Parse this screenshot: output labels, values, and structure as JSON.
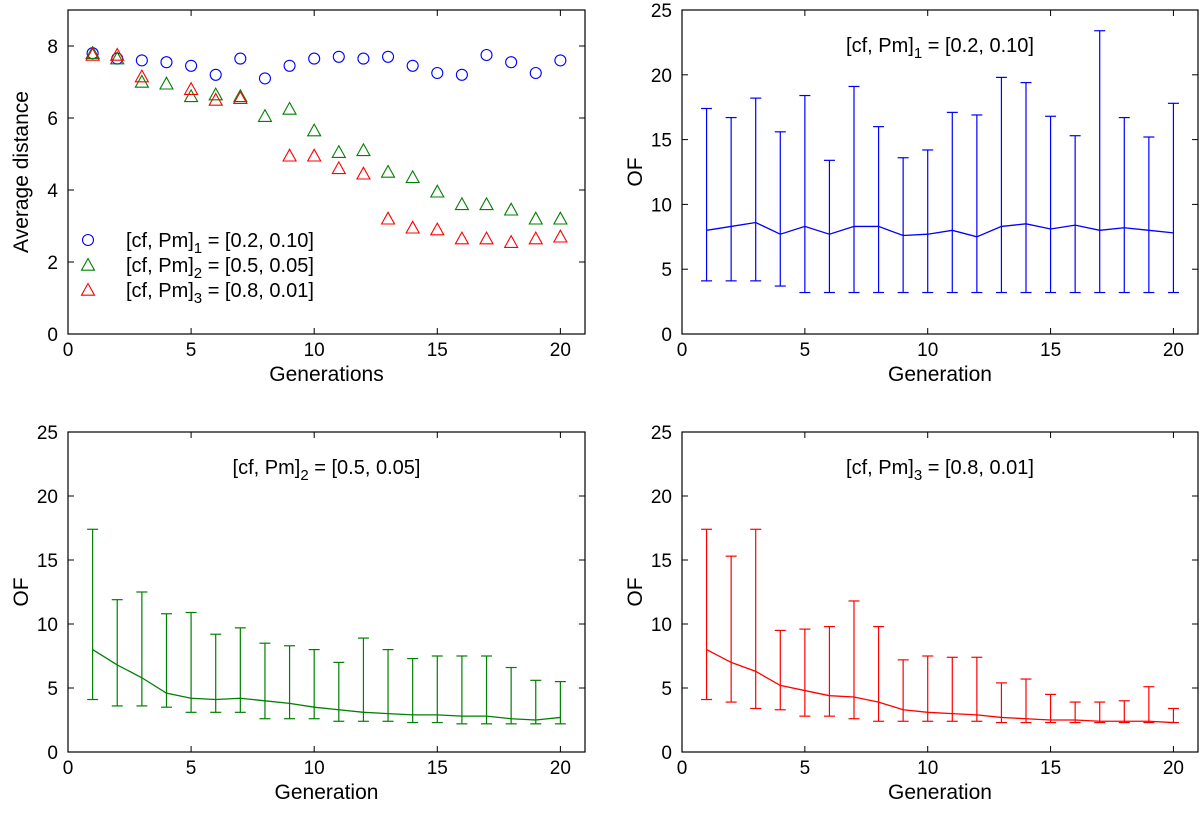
{
  "chart_data": [
    {
      "type": "scatter",
      "xlabel": "Generations",
      "ylabel": "Average distance",
      "xlim": [
        0,
        21
      ],
      "ylim": [
        0,
        9
      ],
      "xticks": [
        0,
        5,
        10,
        15,
        20
      ],
      "yticks": [
        0,
        2,
        4,
        6,
        8
      ],
      "legend_position": "lower-left",
      "series": [
        {
          "name": "[cf, Pm]1 = [0.2, 0.10]",
          "legend_main": "[cf, Pm]",
          "legend_sub": "1",
          "legend_rest": " = [0.2, 0.10]",
          "marker": "circle",
          "color": "#0000ff",
          "x": [
            1,
            2,
            3,
            4,
            5,
            6,
            7,
            8,
            9,
            10,
            11,
            12,
            13,
            14,
            15,
            16,
            17,
            18,
            19,
            20
          ],
          "y": [
            7.8,
            7.65,
            7.6,
            7.55,
            7.45,
            7.2,
            7.65,
            7.1,
            7.45,
            7.65,
            7.7,
            7.65,
            7.7,
            7.45,
            7.25,
            7.2,
            7.75,
            7.55,
            7.25,
            7.6
          ]
        },
        {
          "name": "[cf, Pm]2 = [0.5, 0.05]",
          "legend_main": "[cf, Pm]",
          "legend_sub": "2",
          "legend_rest": " = [0.5, 0.05]",
          "marker": "triangle",
          "color": "#008000",
          "x": [
            1,
            2,
            3,
            4,
            5,
            6,
            7,
            8,
            9,
            10,
            11,
            12,
            13,
            14,
            15,
            16,
            17,
            18,
            19,
            20
          ],
          "y": [
            7.8,
            7.65,
            7.0,
            6.95,
            6.6,
            6.65,
            6.6,
            6.05,
            6.25,
            5.65,
            5.05,
            5.1,
            4.5,
            4.35,
            3.95,
            3.6,
            3.6,
            3.45,
            3.2,
            3.2
          ]
        },
        {
          "name": "[cf, Pm]3 = [0.8, 0.01]",
          "legend_main": "[cf, Pm]",
          "legend_sub": "3",
          "legend_rest": " = [0.8, 0.01]",
          "marker": "triangle",
          "color": "#ff0000",
          "x": [
            1,
            2,
            3,
            4,
            5,
            6,
            7,
            8,
            9,
            10,
            11,
            12,
            13,
            14,
            15,
            16,
            17,
            18,
            19,
            20
          ],
          "y": [
            7.75,
            7.75,
            7.15,
            null,
            6.8,
            6.5,
            6.55,
            null,
            4.95,
            4.95,
            4.6,
            4.45,
            3.2,
            2.95,
            2.9,
            2.65,
            2.65,
            2.55,
            2.65,
            2.7
          ]
        }
      ]
    },
    {
      "type": "line",
      "xlabel": "Generation",
      "ylabel": "OF",
      "xlim": [
        0,
        21
      ],
      "ylim": [
        0,
        25
      ],
      "xticks": [
        0,
        5,
        10,
        15,
        20
      ],
      "yticks": [
        0,
        5,
        10,
        15,
        20,
        25
      ],
      "annotation_main": "[cf, Pm]",
      "annotation_sub": "1",
      "annotation_rest": " = [0.2, 0.10]",
      "color": "#0000ff",
      "x": [
        1,
        2,
        3,
        4,
        5,
        6,
        7,
        8,
        9,
        10,
        11,
        12,
        13,
        14,
        15,
        16,
        17,
        18,
        19,
        20
      ],
      "y": [
        8.0,
        8.3,
        8.6,
        7.7,
        8.3,
        7.7,
        8.3,
        8.3,
        7.6,
        7.7,
        8.0,
        7.5,
        8.3,
        8.5,
        8.1,
        8.4,
        8.0,
        8.2,
        8.0,
        7.8
      ],
      "lower": [
        4.1,
        4.1,
        4.1,
        3.7,
        3.2,
        3.2,
        3.2,
        3.2,
        3.2,
        3.2,
        3.2,
        3.2,
        3.2,
        3.2,
        3.2,
        3.2,
        3.2,
        3.2,
        3.2,
        3.2
      ],
      "upper": [
        17.4,
        16.7,
        18.2,
        15.6,
        18.4,
        13.4,
        19.1,
        16.0,
        13.6,
        14.2,
        17.1,
        16.9,
        19.8,
        19.4,
        16.8,
        15.3,
        23.4,
        16.7,
        15.2,
        17.8
      ]
    },
    {
      "type": "line",
      "xlabel": "Generation",
      "ylabel": "OF",
      "xlim": [
        0,
        21
      ],
      "ylim": [
        0,
        25
      ],
      "xticks": [
        0,
        5,
        10,
        15,
        20
      ],
      "yticks": [
        0,
        5,
        10,
        15,
        20,
        25
      ],
      "annotation_main": "[cf, Pm]",
      "annotation_sub": "2",
      "annotation_rest": " = [0.5, 0.05]",
      "color": "#008000",
      "x": [
        1,
        2,
        3,
        4,
        5,
        6,
        7,
        8,
        9,
        10,
        11,
        12,
        13,
        14,
        15,
        16,
        17,
        18,
        19,
        20
      ],
      "y": [
        8.0,
        6.8,
        5.8,
        4.6,
        4.2,
        4.1,
        4.2,
        4.0,
        3.8,
        3.5,
        3.3,
        3.1,
        3.0,
        2.9,
        2.9,
        2.8,
        2.8,
        2.6,
        2.5,
        2.7
      ],
      "lower": [
        4.1,
        3.6,
        3.6,
        3.5,
        3.1,
        3.1,
        3.1,
        2.6,
        2.6,
        2.6,
        2.4,
        2.4,
        2.4,
        2.3,
        2.3,
        2.2,
        2.2,
        2.2,
        2.2,
        2.2
      ],
      "upper": [
        17.4,
        11.9,
        12.5,
        10.8,
        10.9,
        9.2,
        9.7,
        8.5,
        8.3,
        8.0,
        7.0,
        8.9,
        8.0,
        7.3,
        7.5,
        7.5,
        7.5,
        6.6,
        5.6,
        5.5
      ]
    },
    {
      "type": "line",
      "xlabel": "Generation",
      "ylabel": "OF",
      "xlim": [
        0,
        21
      ],
      "ylim": [
        0,
        25
      ],
      "xticks": [
        0,
        5,
        10,
        15,
        20
      ],
      "yticks": [
        0,
        5,
        10,
        15,
        20,
        25
      ],
      "annotation_main": "[cf, Pm]",
      "annotation_sub": "3",
      "annotation_rest": " = [0.8, 0.01]",
      "color": "#ff0000",
      "x": [
        1,
        2,
        3,
        4,
        5,
        6,
        7,
        8,
        9,
        10,
        11,
        12,
        13,
        14,
        15,
        16,
        17,
        18,
        19,
        20
      ],
      "y": [
        8.0,
        7.0,
        6.3,
        5.2,
        4.8,
        4.4,
        4.3,
        3.9,
        3.3,
        3.1,
        3.0,
        2.9,
        2.7,
        2.6,
        2.5,
        2.5,
        2.4,
        2.4,
        2.4,
        2.3
      ],
      "lower": [
        4.1,
        3.9,
        3.4,
        3.3,
        2.8,
        2.8,
        2.6,
        2.4,
        2.4,
        2.4,
        2.4,
        2.4,
        2.3,
        2.3,
        2.3,
        2.3,
        2.3,
        2.3,
        2.3,
        2.3
      ],
      "upper": [
        17.4,
        15.3,
        17.4,
        9.5,
        9.6,
        9.8,
        11.8,
        9.8,
        7.2,
        7.5,
        7.4,
        7.4,
        5.4,
        5.7,
        4.5,
        3.9,
        3.9,
        4.0,
        5.1,
        3.4
      ]
    }
  ]
}
